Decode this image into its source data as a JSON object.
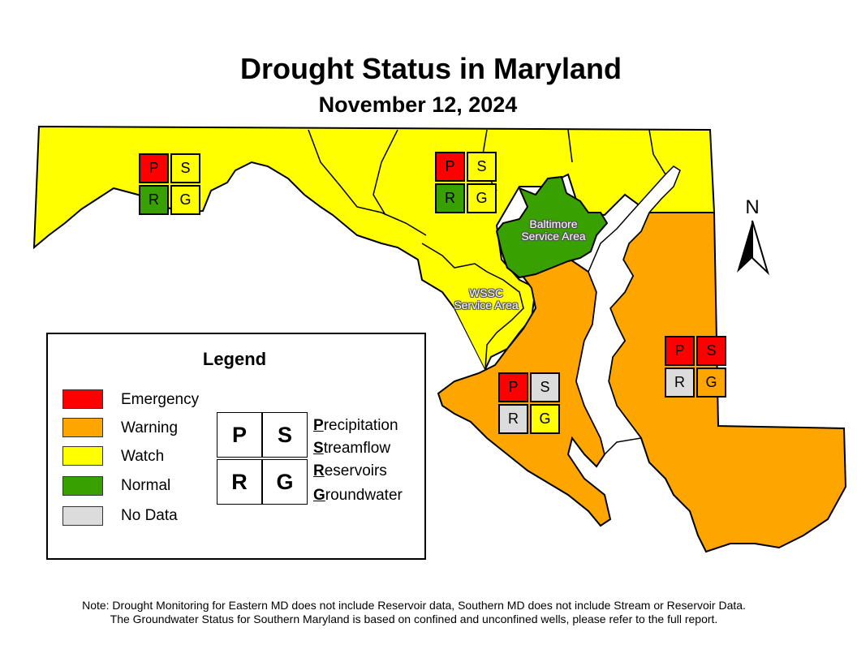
{
  "title": "Drought Status in Maryland",
  "subtitle": "November 12, 2024",
  "colors": {
    "emergency": "#ff0000",
    "warning": "#ffa500",
    "watch": "#ffff00",
    "normal": "#38a000",
    "no_data": "#dcdcdc"
  },
  "compass": {
    "label": "N"
  },
  "service_areas": {
    "baltimore": [
      "Baltimore",
      "Service Area"
    ],
    "wssc": [
      "WSSC",
      "Service Area"
    ]
  },
  "regions": {
    "western": {
      "P": "P",
      "S": "S",
      "R": "R",
      "G": "G",
      "status": {
        "P": "emergency",
        "S": "watch",
        "R": "normal",
        "G": "watch"
      }
    },
    "central": {
      "P": "P",
      "S": "S",
      "R": "R",
      "G": "G",
      "status": {
        "P": "emergency",
        "S": "watch",
        "R": "normal",
        "G": "watch"
      }
    },
    "southern": {
      "P": "P",
      "S": "S",
      "R": "R",
      "G": "G",
      "status": {
        "P": "emergency",
        "S": "no_data",
        "R": "no_data",
        "G": "watch"
      }
    },
    "eastern": {
      "P": "P",
      "S": "S",
      "R": "R",
      "G": "G",
      "status": {
        "P": "emergency",
        "S": "emergency",
        "R": "no_data",
        "G": "warning"
      }
    }
  },
  "legend": {
    "title": "Legend",
    "items": [
      "Emergency",
      "Warning",
      "Watch",
      "Normal",
      "No Data"
    ],
    "tiles": {
      "P": "P",
      "S": "S",
      "R": "R",
      "G": "G"
    },
    "indicators": [
      {
        "letter": "P",
        "rest": "recipitation"
      },
      {
        "letter": "S",
        "rest": "treamflow"
      },
      {
        "letter": "R",
        "rest": "eservoirs"
      },
      {
        "letter": "G",
        "rest": "roundwater"
      }
    ]
  },
  "footnote": [
    "Note: Drought Monitoring for Eastern MD does not include Reservoir data, Southern MD does not include Stream or Reservoir Data.",
    "The Groundwater Status for Southern Maryland is based on confined and unconfined wells, please refer to the full report."
  ]
}
